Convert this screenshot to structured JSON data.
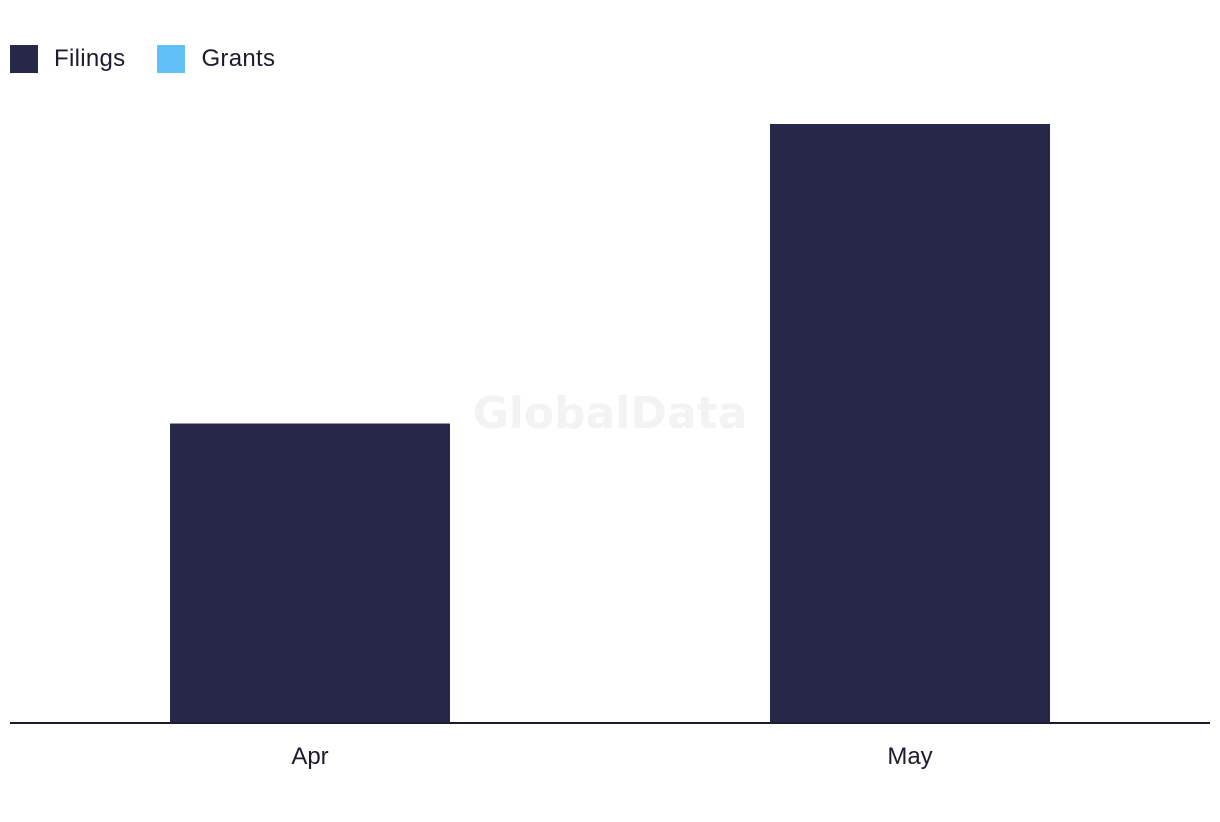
{
  "legend": [
    {
      "name": "Filings",
      "color": "#272849"
    },
    {
      "name": "Grants",
      "color": "#62c0f8"
    }
  ],
  "watermark": "GlobalData",
  "chart_data": {
    "type": "bar",
    "categories": [
      "Apr",
      "May"
    ],
    "series": [
      {
        "name": "Filings",
        "color": "#272849",
        "values": [
          1,
          2
        ]
      },
      {
        "name": "Grants",
        "color": "#62c0f8",
        "values": [
          0,
          0
        ]
      }
    ],
    "ylim": [
      0,
      2
    ],
    "grid": false,
    "legend_position": "top-left",
    "title": "",
    "xlabel": "",
    "ylabel": ""
  }
}
